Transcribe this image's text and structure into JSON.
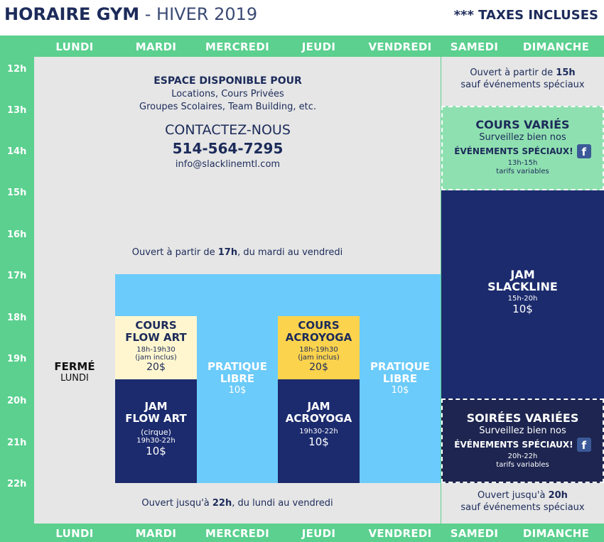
{
  "header": {
    "title_bold": "HORAIRE GYM",
    "title_light": " - HIVER 2019",
    "taxes": "*** TAXES INCLUSES"
  },
  "days": [
    "LUNDI",
    "MARDI",
    "MERCREDI",
    "JEUDI",
    "VENDREDI",
    "SAMEDI",
    "DIMANCHE"
  ],
  "hours": [
    "12h",
    "13h",
    "14h",
    "15h",
    "16h",
    "17h",
    "18h",
    "19h",
    "20h",
    "21h",
    "22h"
  ],
  "rental": {
    "title": "ESPACE DISPONIBLE POUR",
    "line1": "Locations, Cours Privées",
    "line2": "Groupes Scolaires, Team Building, etc.",
    "contact": "CONTACTEZ-NOUS",
    "phone": "514-564-7295",
    "email": "info@slacklinemtl.com"
  },
  "weekday_open": {
    "pre": "Ouvert à partir de ",
    "time": "17h",
    "post": ", du mardi au vendredi"
  },
  "weekday_close": {
    "pre": "Ouvert jusqu'à ",
    "time": "22h",
    "post": ", du lundi au vendredi"
  },
  "weekend_open": {
    "pre": "Ouvert à partir de ",
    "time": "15h",
    "line2": "sauf événements spéciaux"
  },
  "weekend_close": {
    "pre": "Ouvert jusqu'à ",
    "time": "20h",
    "line2": "sauf événements spéciaux"
  },
  "closed": {
    "title": "FERMÉ",
    "day": "LUNDI"
  },
  "flowart_course": {
    "line1": "COURS",
    "line2": "FLOW ART",
    "time": "18h-19h30",
    "note": "(jam inclus)",
    "price": "20$"
  },
  "flowart_jam": {
    "line1": "JAM",
    "line2": "FLOW ART",
    "note": "(cirque)",
    "time": "19h30-22h",
    "price": "10$"
  },
  "acroyoga_course": {
    "line1": "COURS",
    "line2": "ACROYOGA",
    "time": "18h-19h30",
    "note": "(jam inclus)",
    "price": "20$"
  },
  "acroyoga_jam": {
    "line1": "JAM",
    "line2": "ACROYOGA",
    "time": "19h30-22h",
    "price": "10$"
  },
  "pratique_wed": {
    "line1": "PRATIQUE",
    "line2": "LIBRE",
    "price": "10$"
  },
  "pratique_fri": {
    "line1": "PRATIQUE",
    "line2": "LIBRE",
    "price": "10$"
  },
  "cours_varies": {
    "title": "COURS VARIÉS",
    "line1": "Surveillez bien nos",
    "line2": "ÉVÉNEMENTS SPÉCIAUX!",
    "time": "13h-15h",
    "note": "tarifs variables"
  },
  "jam_slackline": {
    "line1": "JAM",
    "line2": "SLACKLINE",
    "time": "15h-20h",
    "price": "10$"
  },
  "soirees_varies": {
    "title": "SOIRÉES VARIÉES",
    "line1": "Surveillez bien nos",
    "line2": "ÉVÉNEMENTS SPÉCIAUX!",
    "time": "20h-22h",
    "note": "tarifs variables"
  },
  "icons": {
    "facebook": "facebook-icon"
  },
  "colors": {
    "green": "#5bd08f",
    "navy": "#1c2b6e",
    "lightblue": "#6bcbfa",
    "cream": "#fff6cf",
    "yellow": "#fcd34d",
    "lightgreen": "#8fe0b0",
    "darknavy": "#1d2550"
  }
}
